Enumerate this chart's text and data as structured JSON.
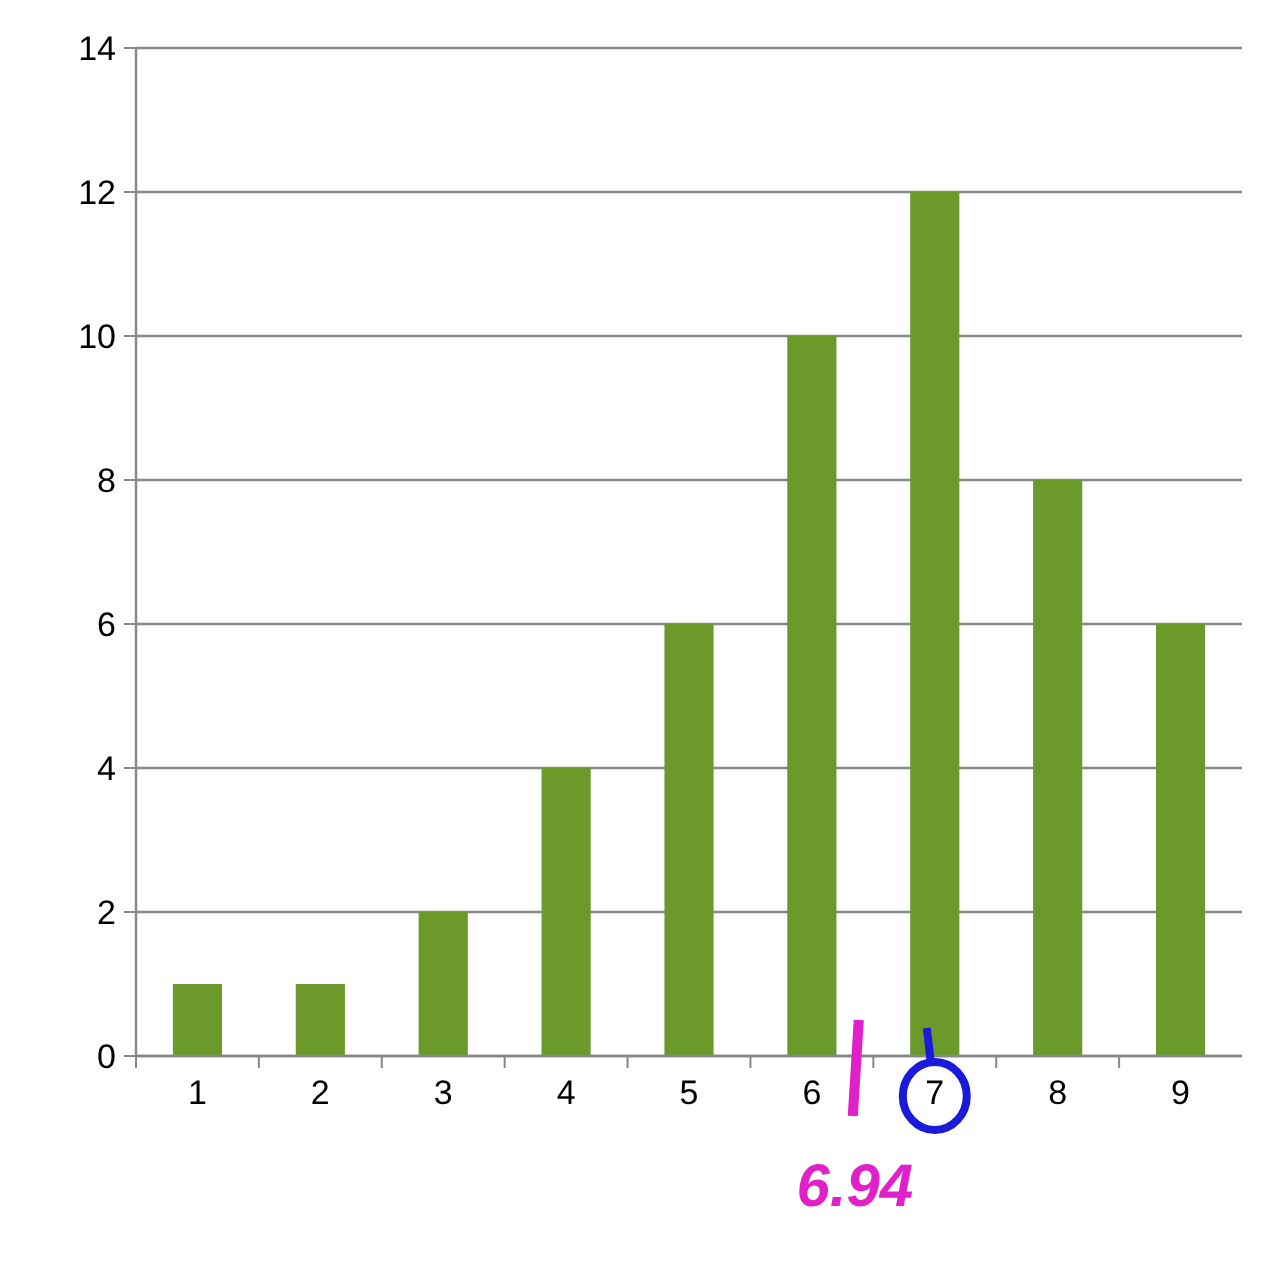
{
  "chart_data": {
    "type": "bar",
    "categories": [
      "1",
      "2",
      "3",
      "4",
      "5",
      "6",
      "7",
      "8",
      "9"
    ],
    "values": [
      1,
      1,
      2,
      4,
      6,
      10,
      12,
      8,
      6
    ],
    "color": "#6b9a2b",
    "ylim": [
      0,
      14
    ],
    "yticks": [
      0,
      2,
      4,
      6,
      8,
      10,
      12,
      14
    ],
    "grid": "y",
    "annotations": [
      "6.94"
    ]
  }
}
